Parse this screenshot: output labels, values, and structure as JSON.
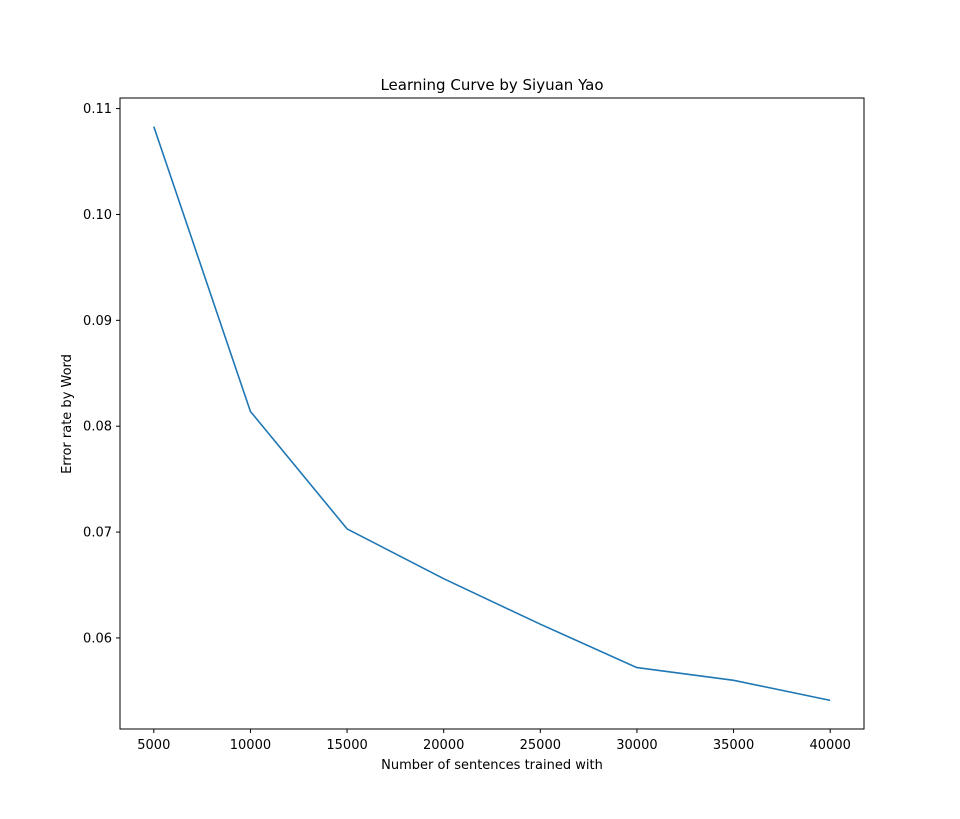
{
  "chart_data": {
    "type": "line",
    "title": "Learning Curve by Siyuan Yao",
    "xlabel": "Number of sentences trained with",
    "ylabel": "Error rate by Word",
    "x": [
      5000,
      10000,
      15000,
      20000,
      25000,
      30000,
      35000,
      40000
    ],
    "series": [
      {
        "values": [
          0.1083,
          0.0814,
          0.0703,
          0.0656,
          0.0613,
          0.0572,
          0.056,
          0.0541
        ]
      }
    ],
    "xticks": [
      "5000",
      "10000",
      "15000",
      "20000",
      "25000",
      "30000",
      "35000",
      "40000"
    ],
    "yticks": [
      "0.06",
      "0.07",
      "0.08",
      "0.09",
      "0.10",
      "0.11"
    ],
    "xlim": [
      3250,
      41750
    ],
    "ylim": [
      0.0514,
      0.111
    ],
    "grid": false,
    "line_color": "#1f77b4"
  }
}
